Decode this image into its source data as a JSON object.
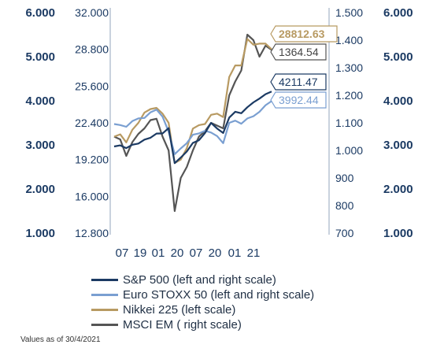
{
  "chart_data": {
    "type": "line",
    "x_tick_labels": [
      "07",
      "19",
      "01",
      "20",
      "07",
      "20",
      "01",
      "21"
    ],
    "axes": {
      "outer_left": {
        "ticks": [
          "6.000",
          "5.000",
          "4.000",
          "3.000",
          "2.000",
          "1.000"
        ],
        "range": [
          1000,
          6000
        ]
      },
      "inner_left": {
        "ticks": [
          "32.000",
          "28.800",
          "25.600",
          "22.400",
          "19.200",
          "16.000",
          "12.800"
        ],
        "range": [
          12800,
          32000
        ]
      },
      "inner_right": {
        "ticks": [
          "1.500",
          "1.400",
          "1.300",
          "1.200",
          "1.100",
          "1.000",
          "900",
          "800",
          "700"
        ],
        "range": [
          700,
          1500
        ]
      },
      "outer_right": {
        "ticks": [
          "6.000",
          "5.000",
          "4.000",
          "3.000",
          "2.000",
          "1.000"
        ],
        "range": [
          1000,
          6000
        ]
      }
    },
    "series": [
      {
        "name": "S&P 500 (left and right scale)",
        "color": "#1b3a63",
        "axis": "outer_left",
        "last_label": "4211.47",
        "values": [
          2964,
          2990,
          2926,
          3004,
          3030,
          3120,
          3163,
          3258,
          3260,
          3380,
          2585,
          2712,
          2850,
          3045,
          3105,
          3270,
          3499,
          3372,
          3270,
          3620,
          3752,
          3718,
          3854,
          3965,
          4050,
          4150,
          4211
        ]
      },
      {
        "name": "Euro STOXX 50 (left and right scale)",
        "color": "#7a9fd1",
        "axis": "outer_left",
        "last_label": "3992.44",
        "values": [
          3474,
          3450,
          3410,
          3540,
          3600,
          3610,
          3740,
          3800,
          3640,
          3300,
          2790,
          2920,
          3040,
          3230,
          3260,
          3320,
          3280,
          3200,
          3040,
          3500,
          3550,
          3480,
          3600,
          3650,
          3750,
          3900,
          3992
        ]
      },
      {
        "name": "Nikkei 225 (left scale)",
        "color": "#b89a62",
        "axis": "inner_left",
        "last_label": "28812.63",
        "values": [
          21200,
          21400,
          20700,
          21800,
          22400,
          23300,
          23600,
          23700,
          23200,
          22400,
          18900,
          19200,
          20200,
          21900,
          22200,
          22300,
          23100,
          23200,
          22900,
          26400,
          27400,
          27400,
          29700,
          29200,
          29300,
          29300,
          28813
        ]
      },
      {
        "name": "MSCI EM ( right scale)",
        "color": "#555555",
        "axis": "inner_right",
        "last_label": "1364.54",
        "values": [
          1050,
          1040,
          980,
          1030,
          1060,
          1080,
          1110,
          1115,
          1050,
          1000,
          780,
          900,
          940,
          1000,
          1050,
          1070,
          1100,
          1090,
          1080,
          1200,
          1250,
          1290,
          1420,
          1400,
          1340,
          1380,
          1365
        ]
      }
    ]
  },
  "footnote": "Values as of 30/4/2021"
}
